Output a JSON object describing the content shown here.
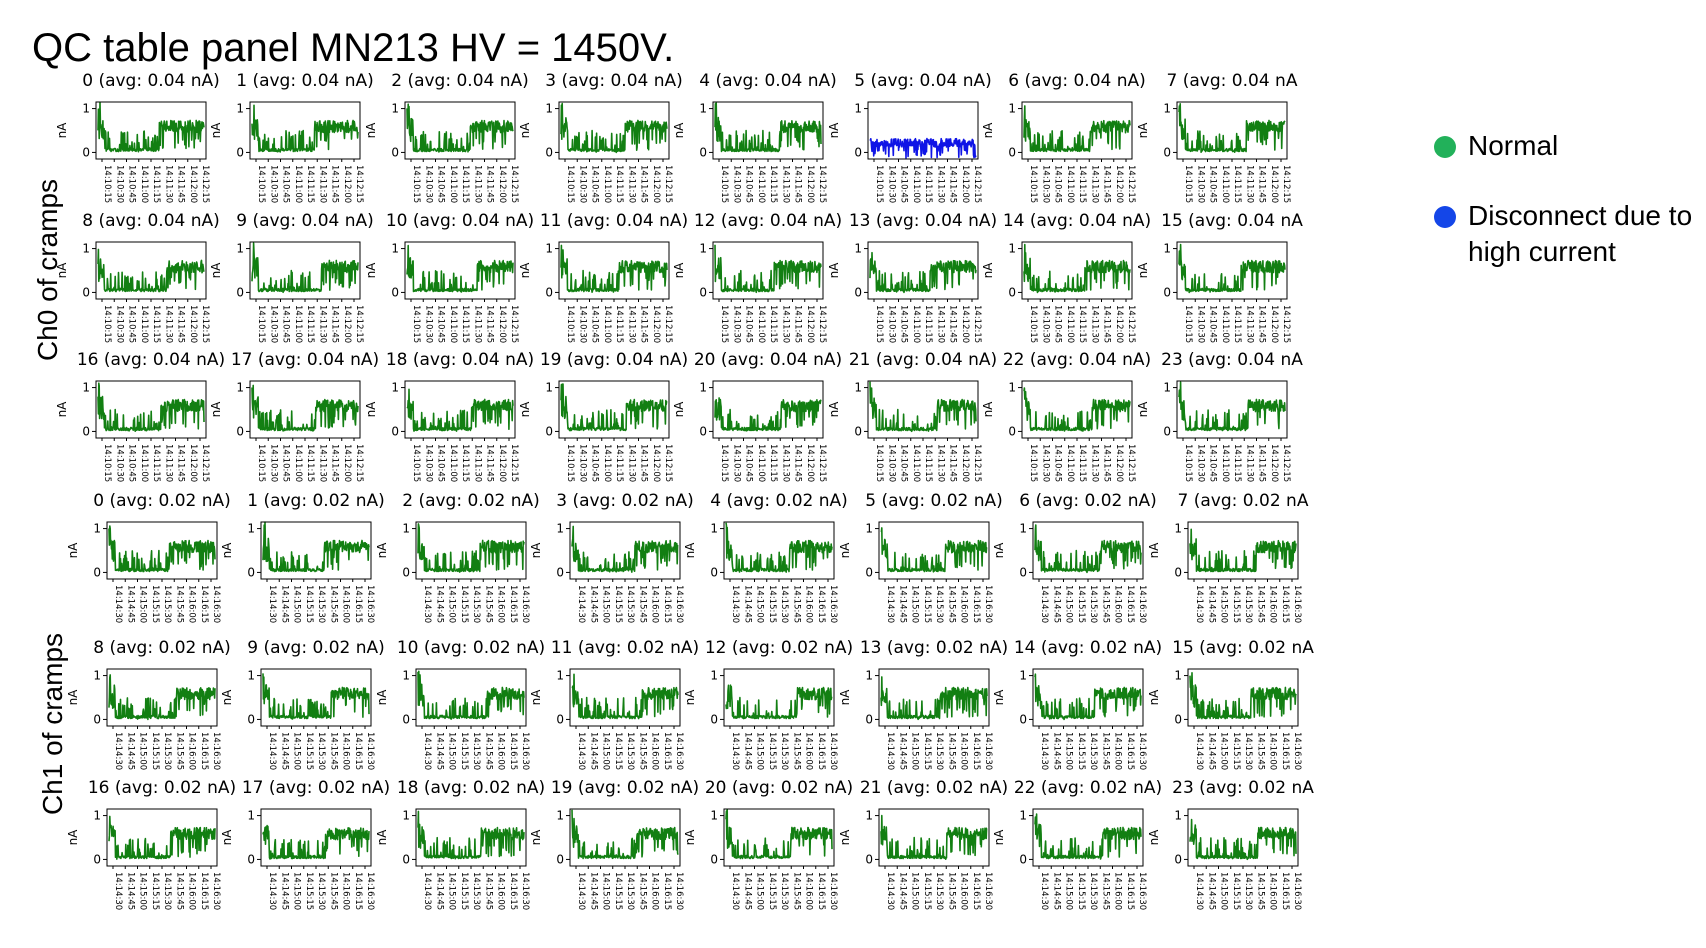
{
  "title": "QC table panel MN213 HV = 1450V.",
  "group_labels": [
    "Ch0 of cramps",
    "Ch1 of cramps"
  ],
  "legend": {
    "items": [
      {
        "label": "Normal",
        "color": "#22b15a"
      },
      {
        "label": "Disconnect due to high current",
        "color": "#1446e8"
      }
    ]
  },
  "colors": {
    "normal": "#127f12",
    "disconnect": "#0f14e6"
  },
  "chart_data": [
    {
      "type": "line",
      "group": "Ch0 of cramps",
      "ylabel": "nA",
      "yticks": [
        0,
        1
      ],
      "ylim": [
        -0.15,
        1.15
      ],
      "xtick_labels": [
        "14:10:15",
        "14:10:30",
        "14:10:45",
        "14:11:00",
        "14:11:15",
        "14:11:30",
        "14:11:45",
        "14:12:00",
        "14:12:15"
      ],
      "disconnected_channels": [
        5
      ],
      "panels": [
        {
          "title": "0 (avg: 0.04 nA)"
        },
        {
          "title": "1 (avg: 0.04 nA)"
        },
        {
          "title": "2 (avg: 0.04 nA)"
        },
        {
          "title": "3 (avg: 0.04 nA)"
        },
        {
          "title": "4 (avg: 0.04 nA)"
        },
        {
          "title": "5 (avg: 0.04 nA)"
        },
        {
          "title": "6 (avg: 0.04 nA)"
        },
        {
          "title": "7 (avg: 0.04 nA"
        },
        {
          "title": "8 (avg: 0.04 nA)"
        },
        {
          "title": "9 (avg: 0.04 nA)"
        },
        {
          "title": "10 (avg: 0.04 nA)"
        },
        {
          "title": "11 (avg: 0.04 nA)"
        },
        {
          "title": "12 (avg: 0.04 nA)"
        },
        {
          "title": "13 (avg: 0.04 nA)"
        },
        {
          "title": "14 (avg: 0.04 nA)"
        },
        {
          "title": "15 (avg: 0.04 nA"
        },
        {
          "title": "16 (avg: 0.04 nA)"
        },
        {
          "title": "17 (avg: 0.04 nA)"
        },
        {
          "title": "18 (avg: 0.04 nA)"
        },
        {
          "title": "19 (avg: 0.04 nA)"
        },
        {
          "title": "20 (avg: 0.04 nA)"
        },
        {
          "title": "21 (avg: 0.04 nA)"
        },
        {
          "title": "22 (avg: 0.04 nA)"
        },
        {
          "title": "23 (avg: 0.04 nA"
        }
      ]
    },
    {
      "type": "line",
      "group": "Ch1 of cramps",
      "ylabel": "nA",
      "yticks": [
        0,
        1
      ],
      "ylim": [
        -0.15,
        1.15
      ],
      "xtick_labels": [
        "14:14:30",
        "14:14:45",
        "14:15:00",
        "14:15:15",
        "14:15:30",
        "14:15:45",
        "14:16:00",
        "14:16:15",
        "14:16:30"
      ],
      "disconnected_channels": [],
      "panels": [
        {
          "title": "0 (avg: 0.02 nA)"
        },
        {
          "title": "1 (avg: 0.02 nA)"
        },
        {
          "title": "2 (avg: 0.02 nA)"
        },
        {
          "title": "3 (avg: 0.02 nA)"
        },
        {
          "title": "4 (avg: 0.02 nA)"
        },
        {
          "title": "5 (avg: 0.02 nA)"
        },
        {
          "title": "6 (avg: 0.02 nA)"
        },
        {
          "title": "7 (avg: 0.02 nA"
        },
        {
          "title": "8 (avg: 0.02 nA)"
        },
        {
          "title": "9 (avg: 0.02 nA)"
        },
        {
          "title": "10 (avg: 0.02 nA)"
        },
        {
          "title": "11 (avg: 0.02 nA)"
        },
        {
          "title": "12 (avg: 0.02 nA)"
        },
        {
          "title": "13 (avg: 0.02 nA)"
        },
        {
          "title": "14 (avg: 0.02 nA)"
        },
        {
          "title": "15 (avg: 0.02 nA"
        },
        {
          "title": "16 (avg: 0.02 nA)"
        },
        {
          "title": "17 (avg: 0.02 nA)"
        },
        {
          "title": "18 (avg: 0.02 nA)"
        },
        {
          "title": "19 (avg: 0.02 nA)"
        },
        {
          "title": "20 (avg: 0.02 nA)"
        },
        {
          "title": "21 (avg: 0.02 nA)"
        },
        {
          "title": "22 (avg: 0.02 nA)"
        },
        {
          "title": "23 (avg: 0.02 nA"
        }
      ]
    }
  ]
}
